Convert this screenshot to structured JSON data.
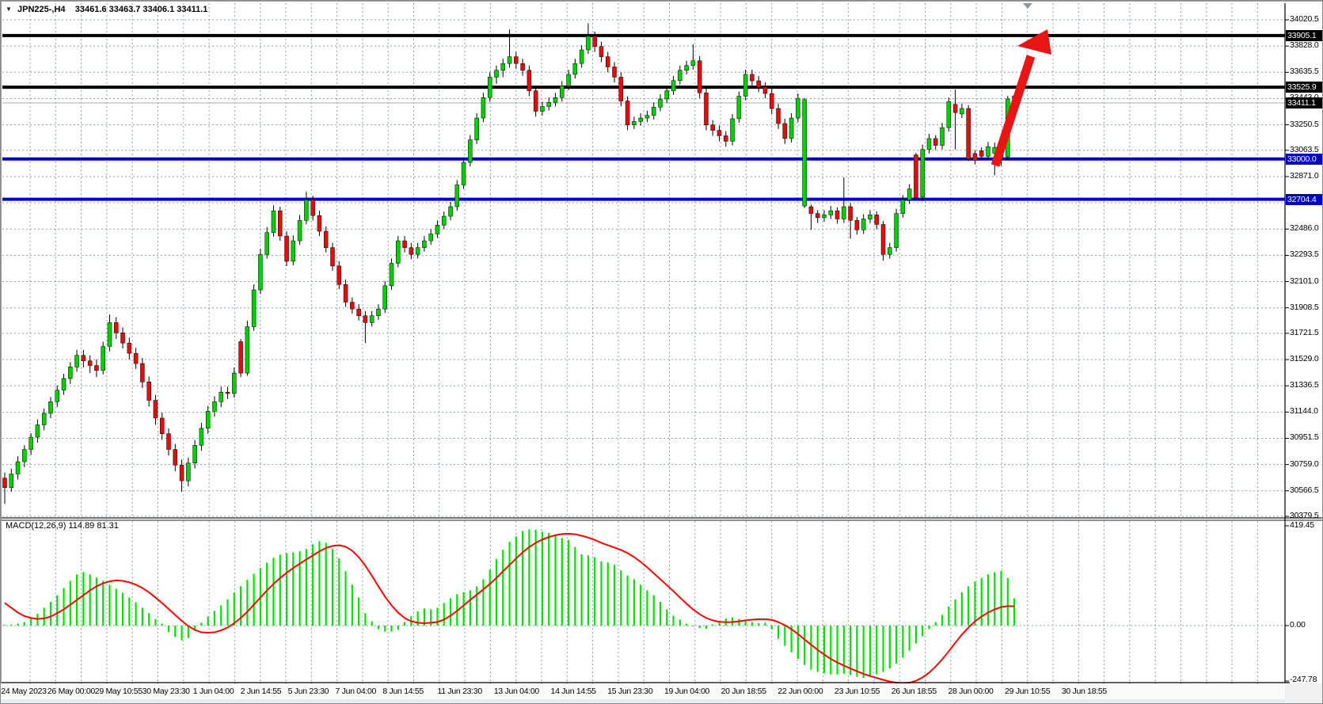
{
  "title": {
    "symbol_period": "JPN225-,H4",
    "ohlc_text": "33461.6 33463.7 33406.1 33411.1"
  },
  "macd_label": "MACD(12,26,9) 114.89 81.31",
  "colors": {
    "bull": "#00CF00",
    "bear": "#E90A0A",
    "wick": "#000000",
    "grid": "#8f9fb1",
    "hline_black": "#000000",
    "hline_blue": "#0000D6",
    "current_price_line": "#ababab",
    "macd_hist": "#00E400",
    "macd_signal": "#FF0000",
    "arrow": "#EA1414",
    "label_box_black": "#000000",
    "label_box_blue": "#0000C8",
    "shift_marker": "#8e97a5"
  },
  "chart_data": {
    "type": "candlestick",
    "symbol": "JPN225-",
    "timeframe": "H4",
    "last_ohlc": {
      "open": 33461.6,
      "high": 33463.7,
      "low": 33406.1,
      "close": 33411.1
    },
    "y_axis": {
      "range": [
        30379.5,
        34020.5
      ],
      "ticks": [
        34020.5,
        33828.0,
        33635.5,
        33443.0,
        33250.5,
        33063.5,
        32871.0,
        32678.5,
        32486.0,
        32293.5,
        32101.0,
        31908.5,
        31721.5,
        31529.0,
        31336.5,
        31144.0,
        30951.5,
        30759.0,
        30566.5,
        30379.5
      ]
    },
    "x_axis": {
      "labels": [
        "24 May 2023",
        "26 May 00:00",
        "29 May 10:55",
        "30 May 23:30",
        "1 Jun 04:00",
        "2 Jun 14:55",
        "5 Jun 23:30",
        "7 Jun 04:00",
        "8 Jun 14:55",
        "11 Jun 23:30",
        "13 Jun 04:00",
        "14 Jun 14:55",
        "15 Jun 23:30",
        "19 Jun 04:00",
        "20 Jun 18:55",
        "22 Jun 00:00",
        "23 Jun 10:55",
        "26 Jun 18:55",
        "28 Jun 00:00",
        "29 Jun 10:55",
        "30 Jun 18:55"
      ]
    },
    "horizontal_lines": [
      {
        "value": 33905.1,
        "color": "black",
        "style": "solid-thick"
      },
      {
        "value": 33525.9,
        "color": "black",
        "style": "solid-thick"
      },
      {
        "value": 33000.0,
        "color": "blue",
        "style": "solid-thick"
      },
      {
        "value": 32704.4,
        "color": "blue",
        "style": "solid-thick"
      },
      {
        "value": 33411.1,
        "color": "gray",
        "style": "current-price-thin"
      }
    ],
    "boxed_price_labels": [
      {
        "label": "33905.1",
        "value": 33905.1,
        "box": "black"
      },
      {
        "label": "33525.9",
        "value": 33525.9,
        "box": "black"
      },
      {
        "label": "33411.1",
        "value": 33411.1,
        "box": "black"
      },
      {
        "label": "33000.0",
        "value": 33000.0,
        "box": "blue"
      },
      {
        "label": "32704.4",
        "value": 32704.4,
        "box": "blue"
      }
    ],
    "annotations": [
      {
        "type": "arrow-up-right",
        "color": "#EA1414",
        "meaning": "projected breakout toward 33905.1 resistance"
      }
    ],
    "candles": [
      [
        30660,
        30700,
        30470,
        30590
      ],
      [
        30590,
        30730,
        30560,
        30690
      ],
      [
        30690,
        30820,
        30650,
        30780
      ],
      [
        30780,
        30900,
        30740,
        30870
      ],
      [
        30870,
        30990,
        30830,
        30960
      ],
      [
        30960,
        31090,
        30920,
        31050
      ],
      [
        31050,
        31170,
        31010,
        31135
      ],
      [
        31135,
        31255,
        31100,
        31220
      ],
      [
        31220,
        31340,
        31180,
        31305
      ],
      [
        31305,
        31425,
        31270,
        31390
      ],
      [
        31390,
        31510,
        31350,
        31475
      ],
      [
        31475,
        31600,
        31440,
        31560
      ],
      [
        31560,
        31600,
        31470,
        31520
      ],
      [
        31520,
        31560,
        31430,
        31485
      ],
      [
        31485,
        31530,
        31400,
        31450
      ],
      [
        31450,
        31660,
        31420,
        31625
      ],
      [
        31625,
        31860,
        31590,
        31800
      ],
      [
        31800,
        31840,
        31680,
        31725
      ],
      [
        31725,
        31765,
        31610,
        31650
      ],
      [
        31650,
        31690,
        31530,
        31575
      ],
      [
        31575,
        31615,
        31460,
        31500
      ],
      [
        31500,
        31540,
        31320,
        31365
      ],
      [
        31365,
        31405,
        31185,
        31230
      ],
      [
        31230,
        31270,
        31050,
        31100
      ],
      [
        31100,
        31140,
        30940,
        30985
      ],
      [
        30985,
        31025,
        30825,
        30870
      ],
      [
        30870,
        30910,
        30710,
        30755
      ],
      [
        30755,
        30795,
        30560,
        30640
      ],
      [
        30640,
        30810,
        30600,
        30770
      ],
      [
        30770,
        30940,
        30730,
        30900
      ],
      [
        30900,
        31065,
        30860,
        31025
      ],
      [
        31025,
        31190,
        30985,
        31150
      ],
      [
        31150,
        31260,
        31110,
        31220
      ],
      [
        31220,
        31330,
        31180,
        31290
      ],
      [
        31290,
        31330,
        31240,
        31280
      ],
      [
        31280,
        31470,
        31250,
        31430
      ],
      [
        31660,
        31680,
        31400,
        31430
      ],
      [
        31430,
        31815,
        31410,
        31770
      ],
      [
        31770,
        32080,
        31740,
        32040
      ],
      [
        32040,
        32340,
        32010,
        32300
      ],
      [
        32300,
        32500,
        32270,
        32460
      ],
      [
        32460,
        32660,
        32430,
        32620
      ],
      [
        32620,
        32650,
        32400,
        32435
      ],
      [
        32435,
        32470,
        32215,
        32250
      ],
      [
        32250,
        32440,
        32220,
        32400
      ],
      [
        32400,
        32590,
        32370,
        32550
      ],
      [
        32550,
        32760,
        32520,
        32700
      ],
      [
        32700,
        32730,
        32550,
        32585
      ],
      [
        32585,
        32620,
        32435,
        32470
      ],
      [
        32470,
        32505,
        32315,
        32350
      ],
      [
        32350,
        32385,
        32180,
        32215
      ],
      [
        32215,
        32250,
        32045,
        32080
      ],
      [
        32080,
        32115,
        31915,
        31950
      ],
      [
        31950,
        31985,
        31865,
        31900
      ],
      [
        31900,
        31935,
        31815,
        31850
      ],
      [
        31850,
        31885,
        31650,
        31800
      ],
      [
        31800,
        31885,
        31770,
        31850
      ],
      [
        31850,
        31935,
        31820,
        31900
      ],
      [
        31900,
        32105,
        31870,
        32070
      ],
      [
        32070,
        32270,
        32040,
        32235
      ],
      [
        32235,
        32435,
        32205,
        32400
      ],
      [
        32400,
        32435,
        32315,
        32350
      ],
      [
        32350,
        32385,
        32265,
        32300
      ],
      [
        32300,
        32385,
        32270,
        32350
      ],
      [
        32350,
        32435,
        32320,
        32400
      ],
      [
        32400,
        32485,
        32370,
        32450
      ],
      [
        32450,
        32550,
        32420,
        32515
      ],
      [
        32515,
        32615,
        32485,
        32580
      ],
      [
        32580,
        32685,
        32550,
        32650
      ],
      [
        32650,
        32845,
        32620,
        32810
      ],
      [
        32810,
        33010,
        32780,
        32975
      ],
      [
        32975,
        33175,
        32945,
        33140
      ],
      [
        33140,
        33335,
        33110,
        33300
      ],
      [
        33300,
        33485,
        33270,
        33450
      ],
      [
        33450,
        33635,
        33420,
        33600
      ],
      [
        33600,
        33685,
        33550,
        33650
      ],
      [
        33650,
        33735,
        33600,
        33700
      ],
      [
        33700,
        33950,
        33670,
        33750
      ],
      [
        33750,
        33785,
        33660,
        33700
      ],
      [
        33700,
        33735,
        33610,
        33650
      ],
      [
        33650,
        33685,
        33460,
        33500
      ],
      [
        33500,
        33535,
        33310,
        33350
      ],
      [
        33350,
        33420,
        33320,
        33385
      ],
      [
        33385,
        33450,
        33355,
        33415
      ],
      [
        33415,
        33485,
        33385,
        33450
      ],
      [
        33450,
        33570,
        33420,
        33535
      ],
      [
        33535,
        33655,
        33505,
        33620
      ],
      [
        33620,
        33735,
        33590,
        33700
      ],
      [
        33700,
        33835,
        33670,
        33800
      ],
      [
        33800,
        33995,
        33770,
        33900
      ],
      [
        33900,
        33935,
        33785,
        33825
      ],
      [
        33825,
        33860,
        33710,
        33750
      ],
      [
        33750,
        33785,
        33635,
        33675
      ],
      [
        33675,
        33710,
        33560,
        33600
      ],
      [
        33600,
        33635,
        33385,
        33425
      ],
      [
        33425,
        33460,
        33210,
        33250
      ],
      [
        33250,
        33310,
        33220,
        33275
      ],
      [
        33275,
        33335,
        33245,
        33300
      ],
      [
        33300,
        33355,
        33270,
        33320
      ],
      [
        33320,
        33415,
        33290,
        33380
      ],
      [
        33380,
        33475,
        33350,
        33440
      ],
      [
        33440,
        33535,
        33410,
        33500
      ],
      [
        33500,
        33610,
        33470,
        33575
      ],
      [
        33575,
        33685,
        33545,
        33650
      ],
      [
        33650,
        33720,
        33620,
        33685
      ],
      [
        33685,
        33840,
        33655,
        33720
      ],
      [
        33720,
        33755,
        33445,
        33485
      ],
      [
        33485,
        33520,
        33210,
        33250
      ],
      [
        33250,
        33285,
        33170,
        33210
      ],
      [
        33210,
        33245,
        33130,
        33170
      ],
      [
        33170,
        33205,
        33090,
        33130
      ],
      [
        33130,
        33330,
        33100,
        33295
      ],
      [
        33295,
        33495,
        33265,
        33460
      ],
      [
        33460,
        33655,
        33430,
        33620
      ],
      [
        33620,
        33655,
        33535,
        33573
      ],
      [
        33573,
        33608,
        33490,
        33527
      ],
      [
        33527,
        33562,
        33445,
        33480
      ],
      [
        33480,
        33515,
        33330,
        33370
      ],
      [
        33370,
        33405,
        33220,
        33260
      ],
      [
        33260,
        33295,
        33110,
        33150
      ],
      [
        33150,
        33335,
        33120,
        33300
      ],
      [
        33300,
        33480,
        33270,
        33445
      ],
      [
        32655,
        33448,
        32640,
        33435
      ],
      [
        32650,
        32665,
        32480,
        32600
      ],
      [
        32600,
        32625,
        32530,
        32570
      ],
      [
        32570,
        32625,
        32540,
        32590
      ],
      [
        32590,
        32655,
        32560,
        32620
      ],
      [
        32620,
        32645,
        32525,
        32560
      ],
      [
        32560,
        32865,
        32530,
        32650
      ],
      [
        32650,
        32675,
        32415,
        32550
      ],
      [
        32550,
        32575,
        32445,
        32480
      ],
      [
        32480,
        32595,
        32450,
        32560
      ],
      [
        32560,
        32625,
        32530,
        32590
      ],
      [
        32590,
        32615,
        32485,
        32520
      ],
      [
        32520,
        32545,
        32255,
        32300
      ],
      [
        32300,
        32385,
        32270,
        32350
      ],
      [
        32350,
        32635,
        32320,
        32600
      ],
      [
        32600,
        32735,
        32570,
        32700
      ],
      [
        32700,
        32815,
        32670,
        32780
      ],
      [
        33030,
        33045,
        32700,
        32715
      ],
      [
        32720,
        33105,
        32690,
        33070
      ],
      [
        33070,
        33185,
        33040,
        33150
      ],
      [
        33150,
        33175,
        33065,
        33100
      ],
      [
        33100,
        33265,
        33070,
        33230
      ],
      [
        33230,
        33450,
        33200,
        33420
      ],
      [
        33400,
        33510,
        33070,
        33340
      ],
      [
        33330,
        33405,
        33300,
        33370
      ],
      [
        33370,
        33395,
        32985,
        33000
      ],
      [
        33040,
        33065,
        32960,
        32990
      ],
      [
        33060,
        33085,
        32995,
        33020
      ],
      [
        33020,
        33125,
        32995,
        33090
      ],
      [
        33040,
        33120,
        32880,
        33085
      ],
      [
        33085,
        33110,
        32950,
        33015
      ],
      [
        33015,
        33462,
        32990,
        33440
      ],
      [
        33461.6,
        33463.7,
        33406.1,
        33411.1
      ]
    ],
    "indicator": {
      "name": "MACD",
      "params": "12,26,9",
      "macd_last": 114.89,
      "signal_last": 81.31,
      "axis_ticks": [
        419.45,
        0.0,
        -247.78
      ],
      "range": [
        -247.78,
        419.45
      ],
      "macd": [
        3,
        4,
        8,
        15,
        30,
        50,
        75,
        100,
        128,
        158,
        188,
        215,
        225,
        215,
        202,
        188,
        172,
        155,
        138,
        118,
        98,
        75,
        52,
        28,
        8,
        -28,
        -48,
        -62,
        -52,
        -22,
        12,
        38,
        62,
        85,
        110,
        138,
        165,
        192,
        218,
        242,
        265,
        285,
        298,
        305,
        308,
        312,
        322,
        342,
        355,
        348,
        322,
        282,
        228,
        172,
        118,
        52,
        18,
        -15,
        -25,
        -25,
        -18,
        15,
        40,
        60,
        72,
        68,
        75,
        95,
        115,
        132,
        140,
        148,
        165,
        195,
        235,
        280,
        318,
        352,
        375,
        398,
        405,
        403,
        395,
        390,
        378,
        368,
        360,
        330,
        300,
        295,
        288,
        270,
        265,
        255,
        232,
        210,
        195,
        172,
        148,
        128,
        100,
        68,
        42,
        25,
        8,
        -3,
        -10,
        -13,
        5,
        18,
        30,
        35,
        28,
        22,
        15,
        10,
        12,
        -15,
        -55,
        -85,
        -112,
        -140,
        -165,
        -185,
        -195,
        -200,
        -205,
        -205,
        -202,
        -208,
        -215,
        -220,
        -215,
        -205,
        -195,
        -180,
        -160,
        -135,
        -105,
        -75,
        -45,
        -15,
        15,
        45,
        80,
        110,
        140,
        165,
        185,
        200,
        215,
        225,
        230,
        200,
        114.89
      ],
      "signal": [
        95,
        75,
        55,
        40,
        32,
        28,
        30,
        38,
        52,
        68,
        88,
        108,
        128,
        148,
        165,
        178,
        186,
        190,
        188,
        182,
        172,
        158,
        140,
        118,
        95,
        70,
        45,
        20,
        -2,
        -18,
        -28,
        -30,
        -28,
        -20,
        -8,
        10,
        32,
        58,
        88,
        118,
        148,
        175,
        200,
        222,
        242,
        260,
        278,
        295,
        312,
        326,
        335,
        338,
        332,
        315,
        288,
        252,
        210,
        165,
        122,
        85,
        55,
        32,
        18,
        12,
        10,
        12,
        15,
        25,
        42,
        62,
        85,
        108,
        130,
        152,
        175,
        200,
        228,
        255,
        282,
        308,
        330,
        348,
        362,
        372,
        380,
        385,
        386,
        384,
        378,
        370,
        360,
        348,
        338,
        328,
        318,
        305,
        288,
        268,
        245,
        220,
        195,
        170,
        145,
        118,
        92,
        68,
        48,
        32,
        22,
        16,
        14,
        15,
        18,
        22,
        25,
        27,
        27,
        24,
        15,
        2,
        -15,
        -35,
        -58,
        -80,
        -102,
        -122,
        -140,
        -155,
        -168,
        -180,
        -192,
        -203,
        -212,
        -220,
        -228,
        -235,
        -240,
        -242,
        -240,
        -232,
        -218,
        -198,
        -172,
        -142,
        -108,
        -72,
        -38,
        -8,
        18,
        38,
        55,
        68,
        78,
        82,
        81.31
      ]
    }
  }
}
